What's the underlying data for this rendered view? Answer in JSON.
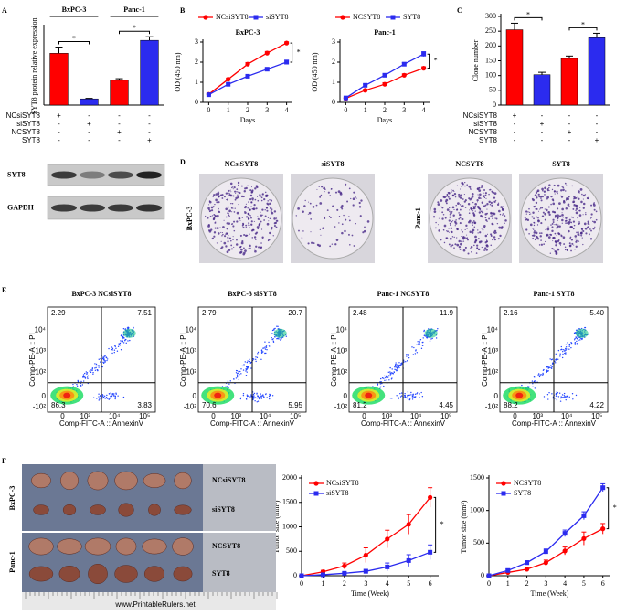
{
  "panels": [
    "A",
    "B",
    "C",
    "D",
    "E",
    "F"
  ],
  "blot": {
    "labels": [
      "SYT8",
      "GAPDH"
    ]
  },
  "colony": {
    "columns": [
      "NCsiSYT8",
      "siSYT8",
      "NCSYT8",
      "SYT8"
    ],
    "rows": [
      "BxPC-3",
      "Panc-1"
    ]
  },
  "flow": {
    "ylabel": "Comp-PE-A :: PI",
    "xlabel": "Comp-FITC-A :: AnnexinV",
    "yticks": [
      "10⁴",
      "10³",
      "10²",
      "0",
      "-10²"
    ],
    "xticks": [
      "0",
      "10³",
      "10⁴",
      "10⁵"
    ],
    "plots": [
      {
        "title": "BxPC-3 NCsiSYT8",
        "quadrants": [
          "2.29",
          "7.51",
          "86.3",
          "3.83"
        ]
      },
      {
        "title": "BxPC-3 siSYT8",
        "quadrants": [
          "2.79",
          "20.7",
          "70.6",
          "5.95"
        ]
      },
      {
        "title": "Panc-1 NCSYT8",
        "quadrants": [
          "2.48",
          "11.9",
          "81.2",
          "4.45"
        ]
      },
      {
        "title": "Panc-1 SYT8",
        "quadrants": [
          "2.16",
          "5.40",
          "88.2",
          "4.22"
        ]
      }
    ]
  },
  "tumor": {
    "rows": [
      "BxPC-3",
      "Panc-1"
    ],
    "groups": [
      "NCsiSYT8",
      "siSYT8",
      "NCSYT8",
      "SYT8"
    ],
    "ruler": "www.PrintableRulers.net"
  },
  "chart_data": [
    {
      "type": "bar",
      "ylabel": "SYT8 protein relative expression",
      "categories": [
        null,
        null,
        null,
        null
      ],
      "values": [
        1.0,
        0.12,
        0.48,
        1.25
      ],
      "errors": [
        0.12,
        0.01,
        0.03,
        0.07
      ],
      "colors": [
        "#ff0000",
        "#2b2bef",
        "#ff0000",
        "#2b2bef"
      ],
      "ylim": [
        0,
        1.5
      ],
      "groups": [
        {
          "label": "BxPC-3",
          "span": [
            0,
            1
          ]
        },
        {
          "label": "Panc-1",
          "span": [
            2,
            3
          ]
        }
      ],
      "significance": [
        {
          "from": 0,
          "to": 1,
          "label": "*"
        },
        {
          "from": 2,
          "to": 3,
          "label": "*"
        }
      ],
      "conditions": [
        {
          "label": "NCsiSYT8",
          "signs": [
            "+",
            "-",
            "-",
            "-"
          ]
        },
        {
          "label": "siSYT8",
          "signs": [
            "-",
            "+",
            "-",
            "-"
          ]
        },
        {
          "label": "NCSYT8",
          "signs": [
            "-",
            "-",
            "+",
            "-"
          ]
        },
        {
          "label": "SYT8",
          "signs": [
            "-",
            "-",
            "-",
            "+"
          ]
        }
      ]
    },
    {
      "type": "line",
      "title": "BxPC-3",
      "xlabel": "Days",
      "ylabel": "OD (450 nm)",
      "legend": "top",
      "annotation": "*",
      "x": [
        0,
        1,
        2,
        3,
        4
      ],
      "xlim": [
        -0.3,
        4.3
      ],
      "xticks": [
        0,
        1,
        2,
        3,
        4
      ],
      "ylim": [
        0,
        3
      ],
      "yticks": [
        0,
        1,
        2,
        3
      ],
      "series": [
        {
          "name": "NCsiSYT8",
          "color": "#ff0000",
          "marker": "circle",
          "values": [
            0.4,
            1.15,
            1.9,
            2.45,
            2.95
          ],
          "errors": [
            0.03,
            0.06,
            0.08,
            0.08,
            0.06
          ]
        },
        {
          "name": "siSYT8",
          "color": "#2b2bef",
          "marker": "square",
          "values": [
            0.38,
            0.9,
            1.3,
            1.65,
            2.0
          ],
          "errors": [
            0.03,
            0.05,
            0.07,
            0.06,
            0.1
          ]
        }
      ]
    },
    {
      "type": "line",
      "title": "Panc-1",
      "xlabel": "Days",
      "ylabel": "OD (450 nm)",
      "legend": "top",
      "annotation": "*",
      "x": [
        0,
        1,
        2,
        3,
        4
      ],
      "xlim": [
        -0.3,
        4.3
      ],
      "xticks": [
        0,
        1,
        2,
        3,
        4
      ],
      "ylim": [
        0,
        3
      ],
      "yticks": [
        0,
        1,
        2,
        3
      ],
      "series": [
        {
          "name": "NCSYT8",
          "color": "#ff0000",
          "marker": "circle",
          "values": [
            0.2,
            0.6,
            0.9,
            1.35,
            1.7
          ],
          "errors": [
            0.02,
            0.05,
            0.08,
            0.07,
            0.07
          ]
        },
        {
          "name": "SYT8",
          "color": "#2b2bef",
          "marker": "square",
          "values": [
            0.22,
            0.85,
            1.35,
            1.9,
            2.4
          ],
          "errors": [
            0.02,
            0.06,
            0.08,
            0.08,
            0.12
          ]
        }
      ]
    },
    {
      "type": "bar",
      "ylabel": "Clone number",
      "categories": [
        null,
        null,
        null,
        null
      ],
      "values": [
        255,
        103,
        158,
        228
      ],
      "errors": [
        22,
        8,
        8,
        15
      ],
      "colors": [
        "#ff0000",
        "#2b2bef",
        "#ff0000",
        "#2b2bef"
      ],
      "ylim": [
        0,
        300
      ],
      "yticks": [
        0,
        50,
        100,
        150,
        200,
        250,
        300
      ],
      "significance": [
        {
          "from": 0,
          "to": 1,
          "label": "*"
        },
        {
          "from": 2,
          "to": 3,
          "label": "*"
        }
      ],
      "conditions": [
        {
          "label": "NCsiSYT8",
          "signs": [
            "+",
            "-",
            "-",
            "-"
          ]
        },
        {
          "label": "siSYT8",
          "signs": [
            "-",
            "+",
            "-",
            "-"
          ]
        },
        {
          "label": "NCSYT8",
          "signs": [
            "-",
            "-",
            "+",
            "-"
          ]
        },
        {
          "label": "SYT8",
          "signs": [
            "-",
            "-",
            "-",
            "+"
          ]
        }
      ]
    },
    {
      "type": "line",
      "xlabel": "Time (Week)",
      "ylabel": "Tumor size (mm³)",
      "legend": "upper left",
      "annotation": "*",
      "x": [
        0,
        1,
        2,
        3,
        4,
        5,
        6
      ],
      "xlim": [
        0,
        6.4
      ],
      "xticks": [
        0,
        1,
        2,
        3,
        4,
        5,
        6
      ],
      "ylim": [
        0,
        2000
      ],
      "yticks": [
        0,
        500,
        1000,
        1500,
        2000
      ],
      "series": [
        {
          "name": "NCsiSYT8",
          "color": "#ff0000",
          "marker": "circle",
          "values": [
            0,
            80,
            200,
            420,
            750,
            1050,
            1600
          ],
          "errors": [
            0,
            30,
            60,
            150,
            180,
            200,
            200
          ]
        },
        {
          "name": "siSYT8",
          "color": "#2b2bef",
          "marker": "square",
          "values": [
            0,
            20,
            50,
            90,
            180,
            310,
            480
          ],
          "errors": [
            0,
            10,
            20,
            40,
            80,
            120,
            150
          ]
        }
      ]
    },
    {
      "type": "line",
      "xlabel": "Time (Week)",
      "ylabel": "Tumor size (mm³)",
      "legend": "upper left",
      "annotation": "*",
      "x": [
        0,
        1,
        2,
        3,
        4,
        5,
        6
      ],
      "xlim": [
        0,
        6.4
      ],
      "xticks": [
        0,
        1,
        2,
        3,
        4,
        5,
        6
      ],
      "ylim": [
        0,
        1500
      ],
      "yticks": [
        0,
        500,
        1000,
        1500
      ],
      "series": [
        {
          "name": "NCSYT8",
          "color": "#ff0000",
          "marker": "circle",
          "values": [
            0,
            50,
            100,
            200,
            380,
            570,
            720
          ],
          "errors": [
            0,
            20,
            30,
            40,
            60,
            100,
            80
          ]
        },
        {
          "name": "SYT8",
          "color": "#2b2bef",
          "marker": "square",
          "values": [
            0,
            80,
            200,
            370,
            650,
            920,
            1350
          ],
          "errors": [
            0,
            20,
            30,
            40,
            50,
            60,
            60
          ]
        }
      ]
    }
  ]
}
